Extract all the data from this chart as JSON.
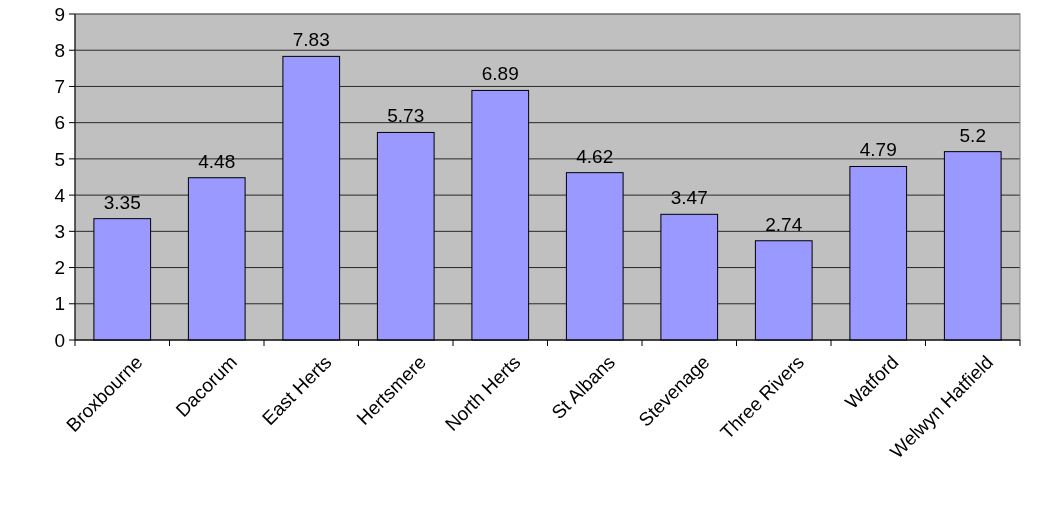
{
  "chart_data": {
    "type": "bar",
    "categories": [
      "Broxbourne",
      "Dacorum",
      "East Herts",
      "Hertsmere",
      "North Herts",
      "St Albans",
      "Stevenage",
      "Three Rivers",
      "Watford",
      "Welwyn Hatfield"
    ],
    "values": [
      3.35,
      4.48,
      7.83,
      5.73,
      6.89,
      4.62,
      3.47,
      2.74,
      4.79,
      5.2
    ],
    "color": "#9999ff",
    "ylim": [
      0,
      9
    ],
    "yticks": [
      0,
      1,
      2,
      3,
      4,
      5,
      6,
      7,
      8,
      9
    ],
    "grid": "y",
    "data_labels": true
  }
}
